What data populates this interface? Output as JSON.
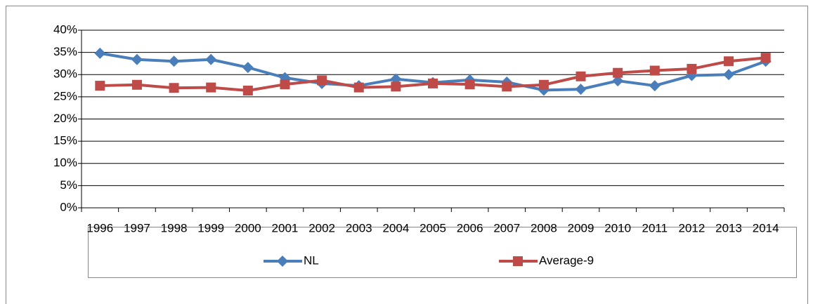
{
  "chart_data": {
    "type": "line",
    "categories": [
      "1996",
      "1997",
      "1998",
      "1999",
      "2000",
      "2001",
      "2002",
      "2003",
      "2004",
      "2005",
      "2006",
      "2007",
      "2008",
      "2009",
      "2010",
      "2011",
      "2012",
      "2013",
      "2014"
    ],
    "series": [
      {
        "name": "NL",
        "color": "#4a7ebb",
        "marker": "diamond",
        "values": [
          34.8,
          33.4,
          33.0,
          33.4,
          31.6,
          29.3,
          28.0,
          27.5,
          29.0,
          28.2,
          28.8,
          28.3,
          26.5,
          26.7,
          28.6,
          27.5,
          29.8,
          30.0,
          33.0
        ]
      },
      {
        "name": "Average-9",
        "color": "#be4b48",
        "marker": "square",
        "values": [
          27.5,
          27.7,
          27.0,
          27.1,
          26.4,
          27.8,
          28.7,
          27.1,
          27.3,
          28.0,
          27.8,
          27.3,
          27.7,
          29.6,
          30.4,
          30.9,
          31.3,
          33.0,
          33.8
        ]
      }
    ],
    "ylim": [
      0,
      40
    ],
    "yticks": [
      {
        "value": 0,
        "label": "0%"
      },
      {
        "value": 5,
        "label": "5%"
      },
      {
        "value": 10,
        "label": "10%"
      },
      {
        "value": 15,
        "label": "15%"
      },
      {
        "value": 20,
        "label": "20%"
      },
      {
        "value": 25,
        "label": "25%"
      },
      {
        "value": 30,
        "label": "30%"
      },
      {
        "value": 35,
        "label": "35%"
      },
      {
        "value": 40,
        "label": "40%"
      }
    ],
    "grid": true,
    "legend": "bottom"
  }
}
